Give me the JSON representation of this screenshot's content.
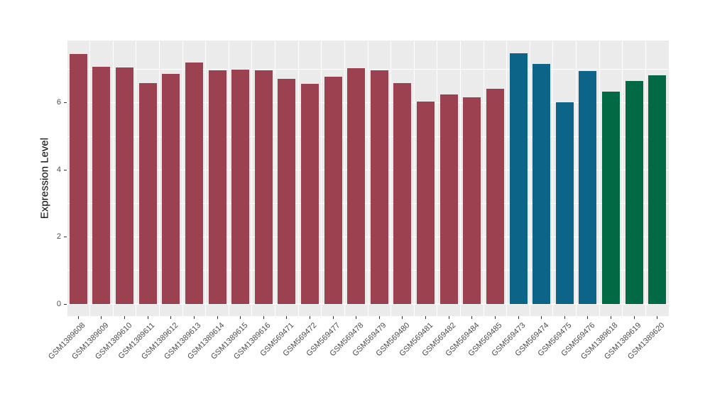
{
  "chart_data": {
    "type": "bar",
    "title": "",
    "xlabel": "",
    "ylabel": "Expression Level",
    "ylim": [
      0,
      7.86
    ],
    "yticks": [
      0,
      2,
      4,
      6
    ],
    "grid": "ggplot gray panel, white major+minor horizontal gridlines every 1 unit, white vertical gridlines between category slots",
    "legend_position": "none",
    "panel_bg": "#EBEBEB",
    "grid_color": "#FFFFFF",
    "tick_color": "#333333",
    "tick_label_color": "#4D4D4D",
    "categories": [
      "GSM1389608",
      "GSM1389609",
      "GSM1389610",
      "GSM1389611",
      "GSM1389612",
      "GSM1389613",
      "GSM1389614",
      "GSM1389615",
      "GSM1389616",
      "GSM569471",
      "GSM569472",
      "GSM569477",
      "GSM569478",
      "GSM569479",
      "GSM569480",
      "GSM569481",
      "GSM569482",
      "GSM569484",
      "GSM569485",
      "GSM569473",
      "GSM569474",
      "GSM569475",
      "GSM569476",
      "GSM1389618",
      "GSM1389619",
      "GSM1389620"
    ],
    "values": [
      7.45,
      7.07,
      7.05,
      6.59,
      6.87,
      7.21,
      6.97,
      6.99,
      6.97,
      6.71,
      6.57,
      6.78,
      7.04,
      6.97,
      6.59,
      6.04,
      6.25,
      6.17,
      6.43,
      7.48,
      7.16,
      6.02,
      6.94,
      6.34,
      6.66,
      6.83
    ],
    "groups": [
      "group1",
      "group1",
      "group1",
      "group1",
      "group1",
      "group1",
      "group1",
      "group1",
      "group1",
      "group1",
      "group1",
      "group1",
      "group1",
      "group1",
      "group1",
      "group1",
      "group1",
      "group1",
      "group1",
      "group2",
      "group2",
      "group2",
      "group2",
      "group3",
      "group3",
      "group3"
    ],
    "group_colors": {
      "group1": "#9B4150",
      "group2": "#0C6589",
      "group3": "#016A44"
    }
  }
}
